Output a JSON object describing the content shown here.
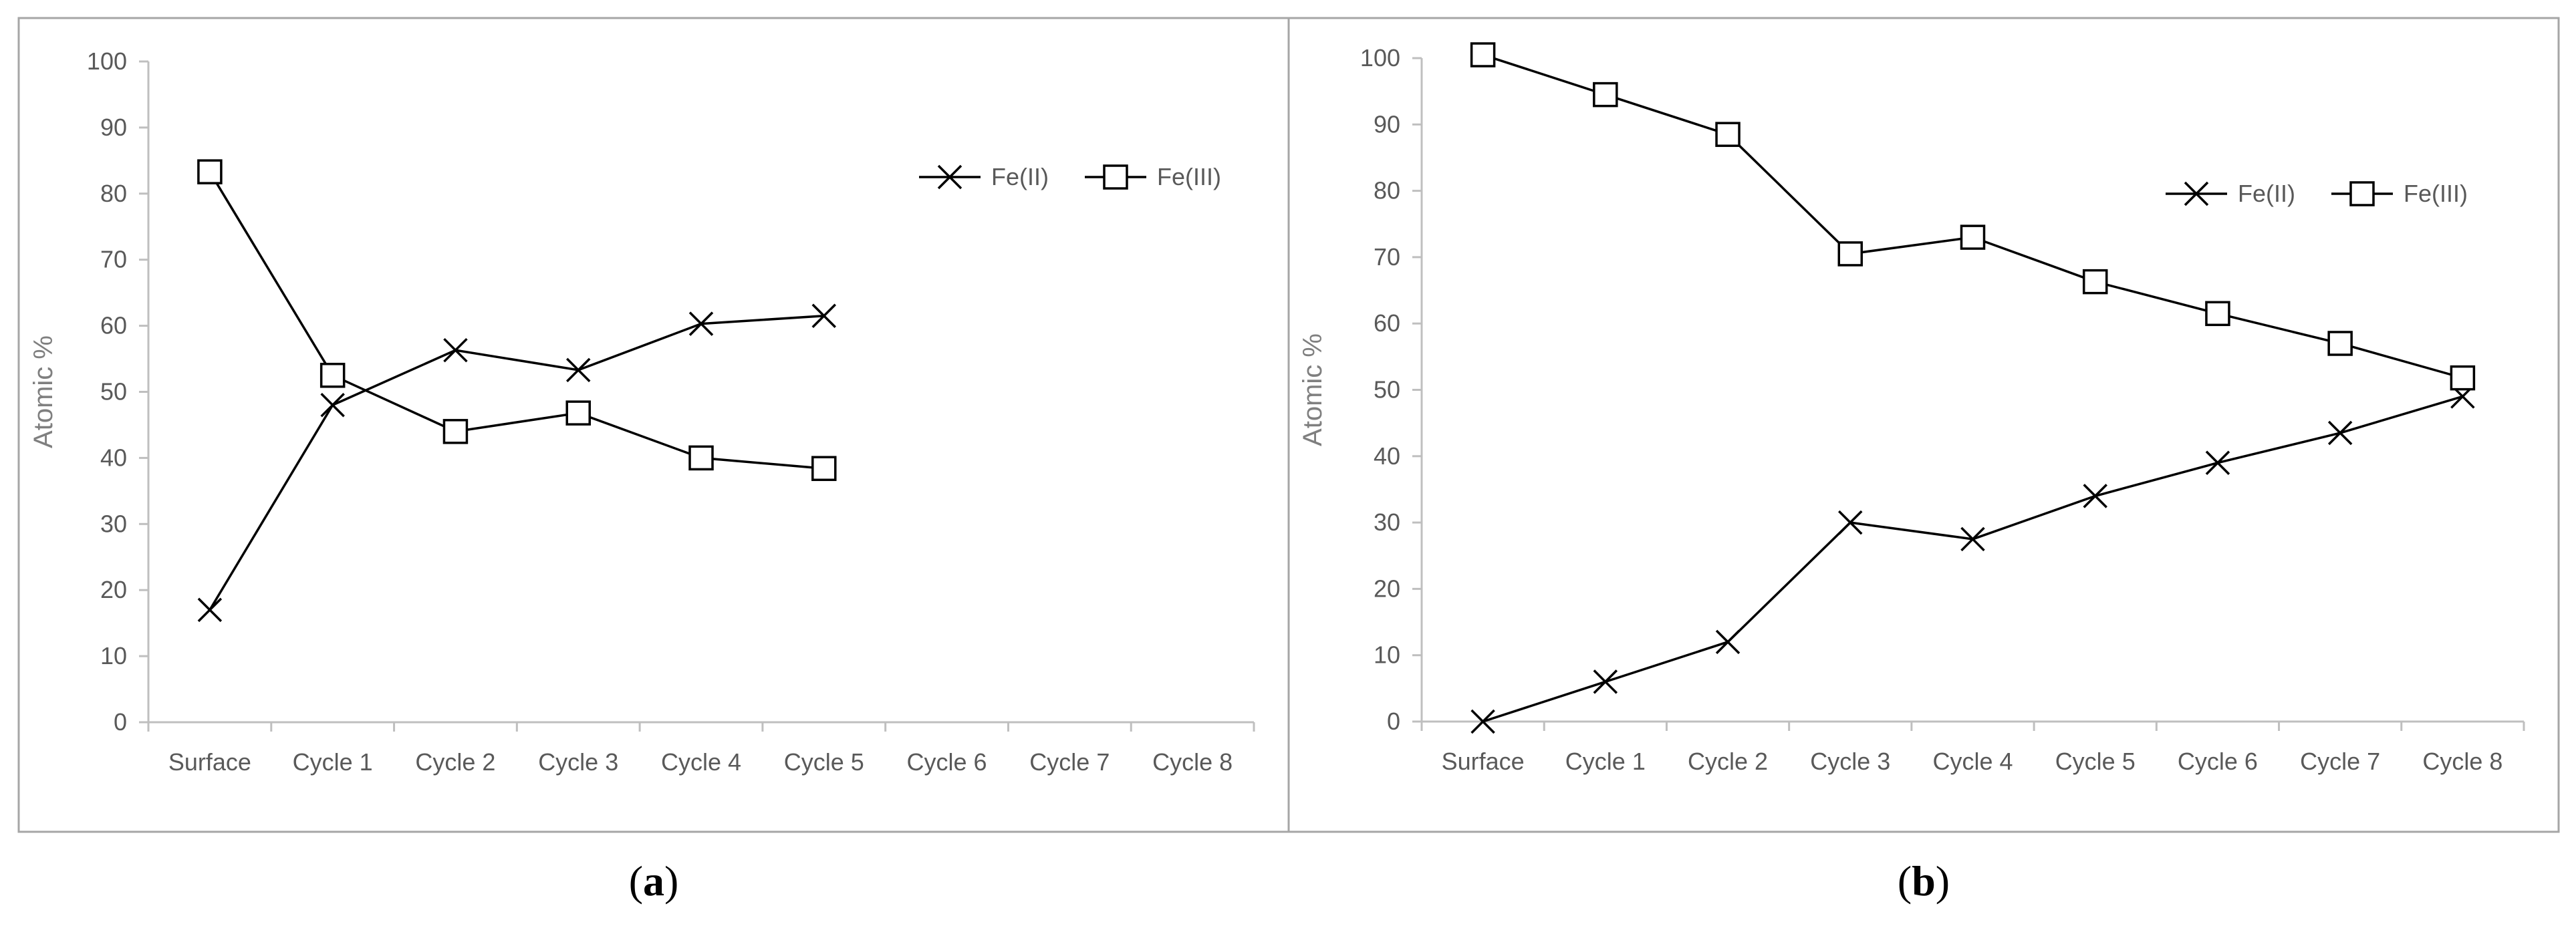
{
  "chart_data": [
    {
      "type": "line",
      "panel_label": "a",
      "categories": [
        "Surface",
        "Cycle 1",
        "Cycle 2",
        "Cycle 3",
        "Cycle 4",
        "Cycle 5",
        "Cycle 6",
        "Cycle 7",
        "Cycle 8"
      ],
      "ylabel": "Atomic %",
      "xlabel": "",
      "ylim": [
        0,
        100
      ],
      "yticks": [
        0,
        10,
        20,
        30,
        40,
        50,
        60,
        70,
        80,
        90,
        100
      ],
      "legend_position": "top-right",
      "grid": false,
      "series": [
        {
          "name": "Fe(II)",
          "marker": "x",
          "values": [
            17,
            48,
            56.3,
            53.3,
            60.3,
            61.5,
            null,
            null,
            null
          ]
        },
        {
          "name": "Fe(III)",
          "marker": "square",
          "values": [
            83.3,
            52.5,
            44,
            46.8,
            40,
            38.4,
            null,
            null,
            null
          ]
        }
      ]
    },
    {
      "type": "line",
      "panel_label": "b",
      "categories": [
        "Surface",
        "Cycle 1",
        "Cycle 2",
        "Cycle 3",
        "Cycle 4",
        "Cycle 5",
        "Cycle 6",
        "Cycle 7",
        "Cycle 8"
      ],
      "ylabel": "Atomic %",
      "xlabel": "",
      "ylim": [
        0,
        100
      ],
      "yticks": [
        0,
        10,
        20,
        30,
        40,
        50,
        60,
        70,
        80,
        90,
        100
      ],
      "legend_position": "top-right",
      "grid": false,
      "series": [
        {
          "name": "Fe(II)",
          "marker": "x",
          "values": [
            0,
            6,
            12,
            30,
            27.5,
            34,
            39,
            43.5,
            49
          ]
        },
        {
          "name": "Fe(III)",
          "marker": "square",
          "values": [
            100.5,
            94.5,
            88.5,
            70.5,
            73,
            66.3,
            61.5,
            57,
            51.8
          ]
        }
      ]
    }
  ]
}
